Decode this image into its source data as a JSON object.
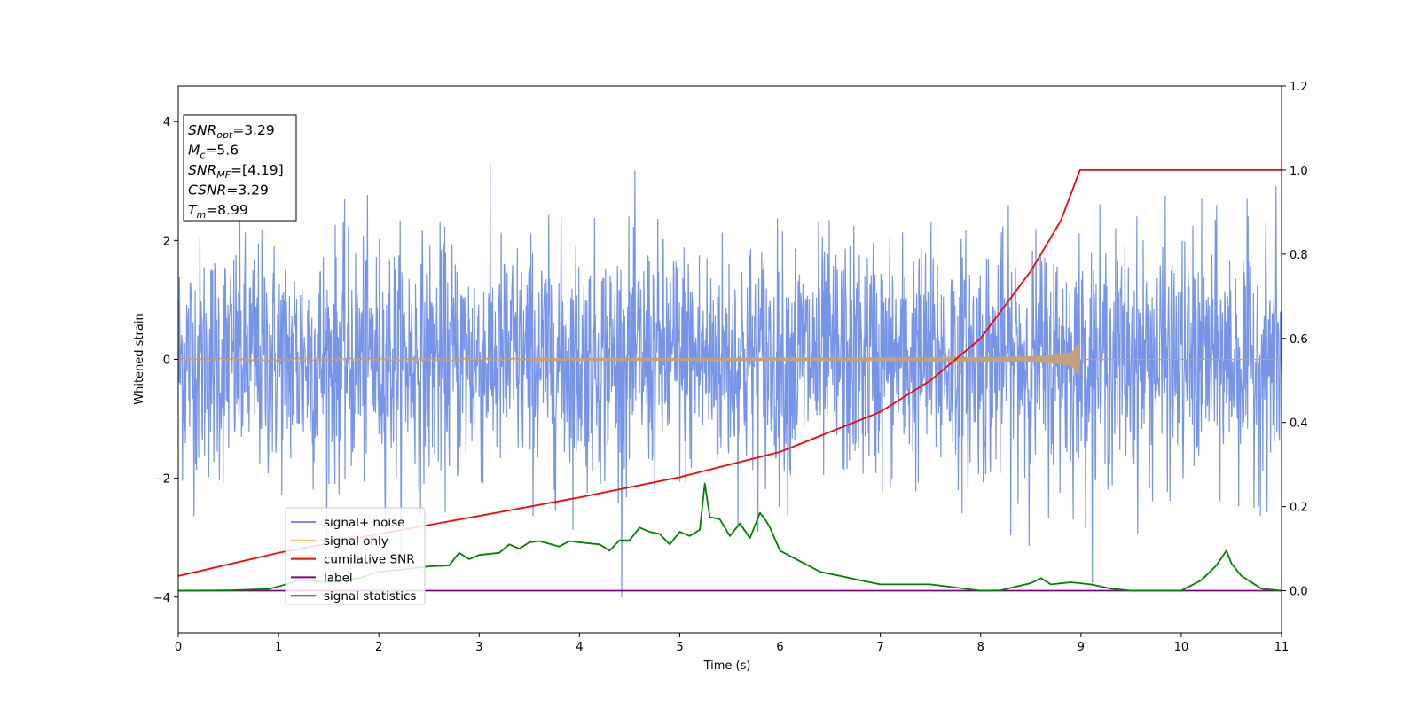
{
  "chart_data": {
    "type": "line",
    "xlabel": "Time (s)",
    "ylabel": "Whitened strain",
    "xlim": [
      0,
      11
    ],
    "ylim": [
      -4.6,
      4.6
    ],
    "y2lim": [
      -0.1,
      1.2
    ],
    "x_ticks": [
      "0",
      "1",
      "2",
      "3",
      "4",
      "5",
      "6",
      "7",
      "8",
      "9",
      "10",
      "11"
    ],
    "y_ticks": [
      "4",
      "2",
      "0",
      "−2",
      "−4"
    ],
    "y2_ticks": [
      "1.2",
      "1.0",
      "0.8",
      "0.6",
      "0.4",
      "0.2",
      "0.0"
    ],
    "grid": false,
    "legend_position": "lower-left",
    "info_box": {
      "position": "top-left",
      "lines": [
        {
          "sym": "SNR",
          "sub": "opt",
          "val": "=3.29"
        },
        {
          "sym": "M",
          "sub": "c",
          "val": "=5.6"
        },
        {
          "sym": "SNR",
          "sub": "MF",
          "val": "=[4.19]"
        },
        {
          "sym": "CSNR",
          "sub": "",
          "val": "=3.29"
        },
        {
          "sym": "T",
          "sub": "m",
          "val": "=8.99"
        }
      ]
    },
    "series": [
      {
        "name": "signal+ noise",
        "color": "#6f8ee8",
        "axis": "left",
        "description_noise_sigma": 1.0
      },
      {
        "name": "signal only",
        "color": "#f5c97a",
        "axis": "left",
        "merger_time": 8.99,
        "peak_amplitude": 0.28
      },
      {
        "name": "cumilative SNR",
        "color": "#ff0000",
        "axis": "right",
        "x": [
          0,
          1,
          2,
          3,
          4,
          5,
          6,
          7,
          7.5,
          8,
          8.5,
          8.8,
          8.99,
          9.0,
          11
        ],
        "values": [
          0.035,
          0.09,
          0.135,
          0.178,
          0.222,
          0.27,
          0.33,
          0.425,
          0.5,
          0.6,
          0.76,
          0.88,
          1.0,
          1.0,
          1.0
        ]
      },
      {
        "name": "label",
        "color": "#800080",
        "axis": "right",
        "x": [
          0,
          11
        ],
        "values": [
          0.0,
          0.0
        ]
      },
      {
        "name": "signal statistics",
        "color": "#008000",
        "axis": "right",
        "x": [
          0,
          0.5,
          0.9,
          1.0,
          1.2,
          1.5,
          1.8,
          2.0,
          2.3,
          2.5,
          2.7,
          2.8,
          2.9,
          3.0,
          3.2,
          3.3,
          3.4,
          3.5,
          3.6,
          3.8,
          3.9,
          4.0,
          4.2,
          4.3,
          4.4,
          4.5,
          4.6,
          4.7,
          4.8,
          4.9,
          5.0,
          5.1,
          5.2,
          5.25,
          5.3,
          5.4,
          5.5,
          5.6,
          5.7,
          5.8,
          5.85,
          5.9,
          6.0,
          6.2,
          6.4,
          6.6,
          6.8,
          7.0,
          7.5,
          8.0,
          8.2,
          8.5,
          8.6,
          8.7,
          8.9,
          9.1,
          9.3,
          9.5,
          10.0,
          10.2,
          10.35,
          10.45,
          10.5,
          10.6,
          10.8,
          11.0
        ],
        "values": [
          0.0,
          0.001,
          0.004,
          0.01,
          0.025,
          0.02,
          0.03,
          0.045,
          0.052,
          0.058,
          0.06,
          0.09,
          0.075,
          0.085,
          0.09,
          0.11,
          0.1,
          0.115,
          0.118,
          0.105,
          0.118,
          0.115,
          0.11,
          0.095,
          0.12,
          0.12,
          0.15,
          0.14,
          0.135,
          0.11,
          0.14,
          0.13,
          0.145,
          0.255,
          0.175,
          0.17,
          0.13,
          0.16,
          0.125,
          0.185,
          0.17,
          0.15,
          0.095,
          0.07,
          0.045,
          0.035,
          0.025,
          0.015,
          0.015,
          0.0,
          0.001,
          0.018,
          0.03,
          0.015,
          0.02,
          0.015,
          0.005,
          0.0,
          0.0,
          0.025,
          0.06,
          0.095,
          0.065,
          0.035,
          0.005,
          0.0
        ]
      }
    ]
  }
}
